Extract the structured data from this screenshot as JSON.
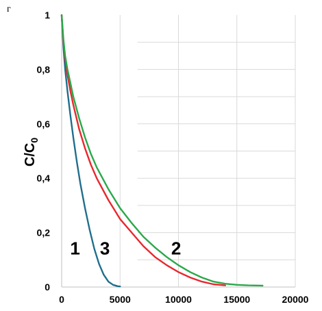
{
  "panel_label": "г",
  "chart_data": {
    "type": "line",
    "title": "",
    "xlabel": "",
    "ylabel": "C/C",
    "ylabel_subscript": "0",
    "xlim": [
      0,
      20000
    ],
    "ylim": [
      0,
      1
    ],
    "x_ticks": [
      0,
      5000,
      10000,
      15000,
      20000
    ],
    "x_tick_labels": [
      "0",
      "5000",
      "10000",
      "15000",
      "20000"
    ],
    "y_ticks": [
      0,
      0.2,
      0.4,
      0.6,
      0.8,
      1
    ],
    "y_tick_labels": [
      "0",
      "0,2",
      "0,4",
      "0,6",
      "0,8",
      "1"
    ],
    "grid": "vertical major lines plus horizontal lines at 0.1 steps right of 6500",
    "legend": "none; curves labelled inline",
    "series": [
      {
        "name": "1",
        "color": "#1f6e8c",
        "x": [
          0,
          150,
          300,
          500,
          750,
          1000,
          1300,
          1600,
          2000,
          2400,
          2800,
          3200,
          3600,
          4000,
          4400,
          4800,
          5000
        ],
        "y": [
          1.0,
          0.88,
          0.8,
          0.72,
          0.63,
          0.55,
          0.46,
          0.38,
          0.29,
          0.21,
          0.14,
          0.085,
          0.045,
          0.02,
          0.008,
          0.003,
          0.002
        ]
      },
      {
        "name": "3",
        "color": "#e8272e",
        "x": [
          0,
          150,
          300,
          500,
          750,
          1000,
          1500,
          2000,
          2500,
          3000,
          4000,
          5000,
          6000,
          7000,
          8000,
          9000,
          10000,
          11000,
          12000,
          13000,
          14000
        ],
        "y": [
          1.0,
          0.9,
          0.84,
          0.78,
          0.72,
          0.67,
          0.58,
          0.51,
          0.45,
          0.4,
          0.32,
          0.25,
          0.2,
          0.15,
          0.11,
          0.08,
          0.055,
          0.035,
          0.02,
          0.01,
          0.006
        ]
      },
      {
        "name": "2",
        "color": "#2aa84a",
        "x": [
          0,
          150,
          300,
          500,
          750,
          1000,
          1500,
          2000,
          2500,
          3000,
          4000,
          5000,
          6000,
          7000,
          8000,
          9000,
          10000,
          11000,
          12000,
          13000,
          14000,
          15000,
          16000,
          17200
        ],
        "y": [
          1.0,
          0.91,
          0.85,
          0.8,
          0.75,
          0.7,
          0.62,
          0.55,
          0.49,
          0.44,
          0.36,
          0.29,
          0.235,
          0.185,
          0.145,
          0.11,
          0.08,
          0.055,
          0.035,
          0.02,
          0.012,
          0.008,
          0.006,
          0.005
        ]
      }
    ],
    "annotations": [
      {
        "text": "1",
        "x": 1150,
        "y": 0.12
      },
      {
        "text": "3",
        "x": 3700,
        "y": 0.12
      },
      {
        "text": "2",
        "x": 9800,
        "y": 0.12
      }
    ]
  }
}
